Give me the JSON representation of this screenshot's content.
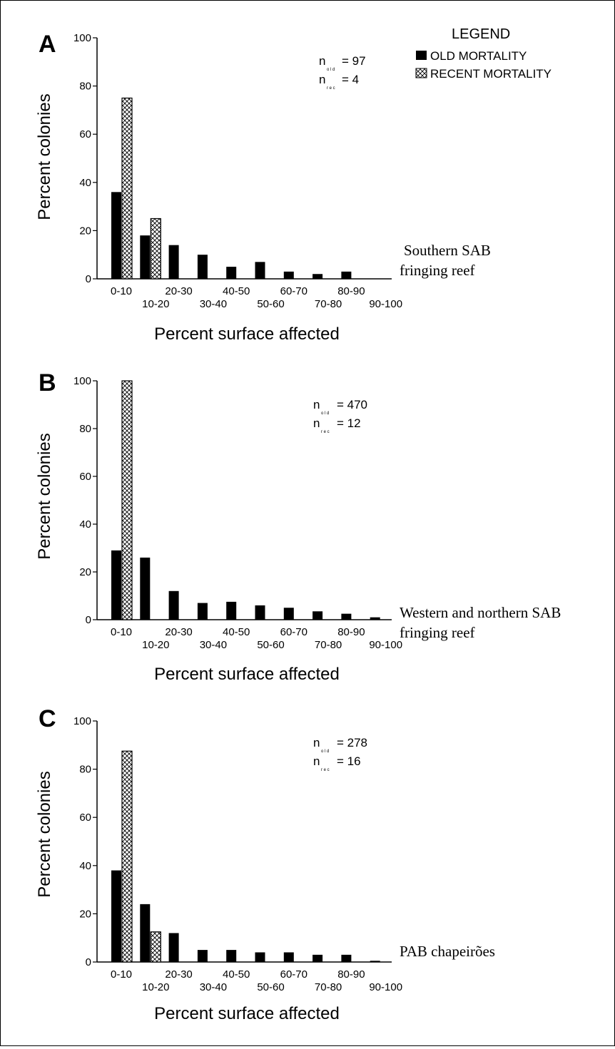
{
  "legend": {
    "title": "LEGEND",
    "items": [
      {
        "label": "OLD MORTALITY",
        "pattern": "solid",
        "color": "#000000"
      },
      {
        "label": "RECENT MORTALITY",
        "pattern": "crosshatch",
        "color": "#000000"
      }
    ]
  },
  "chart_data": [
    {
      "type": "bar",
      "panel": "A",
      "ylabel": "Percent colonies",
      "xlabel": "Percent surface affected",
      "ylim": [
        0,
        100
      ],
      "yticks": [
        "0",
        "20",
        "40",
        "60",
        "80",
        "100"
      ],
      "categories": [
        "0-10",
        "10-20",
        "20-30",
        "30-40",
        "40-50",
        "50-60",
        "60-70",
        "70-80",
        "80-90",
        "90-100"
      ],
      "series": [
        {
          "name": "OLD MORTALITY",
          "values": [
            36,
            18,
            14,
            10,
            5,
            7,
            3,
            2,
            3,
            0
          ]
        },
        {
          "name": "RECENT MORTALITY",
          "values": [
            75,
            25,
            0,
            0,
            0,
            0,
            0,
            0,
            0,
            0
          ]
        }
      ],
      "n_old": "n",
      "n_old_sub": "o l d",
      "n_old_value": "= 97",
      "n_rec": "n",
      "n_rec_sub": "r e c",
      "n_rec_value": "= 4",
      "site_line1": "Southern SAB",
      "site_line2": "fringing reef"
    },
    {
      "type": "bar",
      "panel": "B",
      "ylabel": "Percent colonies",
      "xlabel": "Percent surface affected",
      "ylim": [
        0,
        100
      ],
      "yticks": [
        "0",
        "20",
        "40",
        "60",
        "80",
        "100"
      ],
      "categories": [
        "0-10",
        "10-20",
        "20-30",
        "30-40",
        "40-50",
        "50-60",
        "60-70",
        "70-80",
        "80-90",
        "90-100"
      ],
      "series": [
        {
          "name": "OLD MORTALITY",
          "values": [
            29,
            26,
            12,
            7,
            7.5,
            6,
            5,
            3.5,
            2.5,
            1
          ]
        },
        {
          "name": "RECENT MORTALITY",
          "values": [
            100,
            0,
            0,
            0,
            0,
            0,
            0,
            0,
            0,
            0
          ]
        }
      ],
      "n_old": "n",
      "n_old_sub": "o l d",
      "n_old_value": "= 470",
      "n_rec": "n",
      "n_rec_sub": "r e c",
      "n_rec_value": "= 12",
      "site_line1": "Western and northern SAB",
      "site_line2": "fringing reef"
    },
    {
      "type": "bar",
      "panel": "C",
      "ylabel": "Percent colonies",
      "xlabel": "Percent surface affected",
      "ylim": [
        0,
        100
      ],
      "yticks": [
        "0",
        "20",
        "40",
        "60",
        "80",
        "100"
      ],
      "categories": [
        "0-10",
        "10-20",
        "20-30",
        "30-40",
        "40-50",
        "50-60",
        "60-70",
        "70-80",
        "80-90",
        "90-100"
      ],
      "series": [
        {
          "name": "OLD MORTALITY",
          "values": [
            38,
            24,
            12,
            5,
            5,
            4,
            4,
            3,
            3,
            0.5
          ]
        },
        {
          "name": "RECENT MORTALITY",
          "values": [
            87.5,
            12.5,
            0,
            0,
            0,
            0,
            0,
            0,
            0,
            0
          ]
        }
      ],
      "n_old": "n",
      "n_old_sub": "o l d",
      "n_old_value": "= 278",
      "n_rec": "n",
      "n_rec_sub": "r e c",
      "n_rec_value": "= 16",
      "site_line1": "PAB chapeirões",
      "site_line2": ""
    }
  ]
}
